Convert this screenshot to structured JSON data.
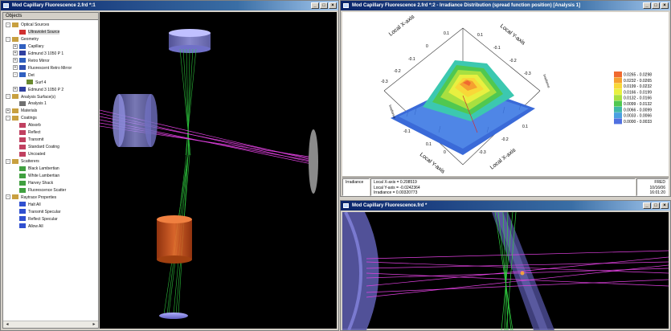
{
  "left_window": {
    "title": "Mod Capillary Fluorescence 2.frd *:1",
    "tree_header": "Objects",
    "tree": [
      {
        "label": "Optical Sources",
        "level": 0,
        "exp": "-",
        "icon": "folder-icon"
      },
      {
        "label": "Ultraviolet Source",
        "level": 1,
        "exp": "",
        "icon": "source-icon",
        "selected": true
      },
      {
        "label": "Geometry",
        "level": 0,
        "exp": "-",
        "icon": "folder-icon"
      },
      {
        "label": "Capillary",
        "level": 1,
        "exp": "+",
        "icon": "geometry-icon"
      },
      {
        "label": "Edmund 3 1050 P 1",
        "level": 1,
        "exp": "+",
        "icon": "lens-icon"
      },
      {
        "label": "Retro Mirror",
        "level": 1,
        "exp": "+",
        "icon": "geometry-icon"
      },
      {
        "label": "Fluorescent Retro Mirror",
        "level": 1,
        "exp": "+",
        "icon": "mirror-icon"
      },
      {
        "label": "Det",
        "level": 1,
        "exp": "-",
        "icon": "geometry-icon"
      },
      {
        "label": "Surf 4",
        "level": 2,
        "exp": "",
        "icon": "surface-icon"
      },
      {
        "label": "Edmund 3 1050 P 2",
        "level": 1,
        "exp": "+",
        "icon": "lens-icon"
      },
      {
        "label": "Analysis Surface(s)",
        "level": 0,
        "exp": "-",
        "icon": "folder-icon"
      },
      {
        "label": "Analysis 1",
        "level": 1,
        "exp": "",
        "icon": "analysis-icon"
      },
      {
        "label": "Materials",
        "level": 0,
        "exp": "+",
        "icon": "folder-icon"
      },
      {
        "label": "Coatings",
        "level": 0,
        "exp": "-",
        "icon": "folder-icon"
      },
      {
        "label": "Absorb",
        "level": 1,
        "exp": "",
        "icon": "coating-icon"
      },
      {
        "label": "Reflect",
        "level": 1,
        "exp": "",
        "icon": "coating-icon"
      },
      {
        "label": "Transmit",
        "level": 1,
        "exp": "",
        "icon": "coating-icon"
      },
      {
        "label": "Standard Coating",
        "level": 1,
        "exp": "",
        "icon": "coating-icon"
      },
      {
        "label": "Uncoated",
        "level": 1,
        "exp": "",
        "icon": "coating-icon"
      },
      {
        "label": "Scatterers",
        "level": 0,
        "exp": "-",
        "icon": "folder-icon"
      },
      {
        "label": "Black Lambertian",
        "level": 1,
        "exp": "",
        "icon": "scatter-icon"
      },
      {
        "label": "White Lambertian",
        "level": 1,
        "exp": "",
        "icon": "scatter-icon"
      },
      {
        "label": "Harvey Shack",
        "level": 1,
        "exp": "",
        "icon": "scatter-icon"
      },
      {
        "label": "Fluorescence Scatter",
        "level": 1,
        "exp": "",
        "icon": "scatter-icon"
      },
      {
        "label": "Raytrace Properties",
        "level": 0,
        "exp": "-",
        "icon": "folder-icon"
      },
      {
        "label": "Halt All",
        "level": 1,
        "exp": "",
        "icon": "raytrace-icon"
      },
      {
        "label": "Transmit Specular",
        "level": 1,
        "exp": "",
        "icon": "raytrace-icon"
      },
      {
        "label": "Reflect Specular",
        "level": 1,
        "exp": "",
        "icon": "raytrace-icon"
      },
      {
        "label": "Allow All",
        "level": 1,
        "exp": "",
        "icon": "raytrace-icon"
      }
    ]
  },
  "irradiance_window": {
    "title": "Mod Capillary Fluorescence 2.frd *:2 - Irradiance Distribution (spread function position) [Analysis 1]",
    "axis_labels": {
      "local_x_top": "Local X-axis",
      "local_y_top": "Local Y-axis",
      "local_y_bottom": "Local Y-axis",
      "local_x_bottom": "Local X-axis",
      "vertical": "Irradiance"
    },
    "axis_ticks_top_left": [
      "-0.3",
      "-0.2",
      "-0.1",
      "0",
      "0.1"
    ],
    "axis_ticks_top_right": [
      "0.1",
      "-0.1",
      "-0.2",
      "-0.3"
    ],
    "axis_ticks_bottom_left": [
      "-0.1",
      "0.1",
      "0"
    ],
    "axis_ticks_bottom_right": [
      "-0.3",
      "-0.2",
      "0.1"
    ],
    "legend": [
      {
        "range": "0.0265 - 0.0298",
        "color": "#f06a30"
      },
      {
        "range": "0.0232 - 0.0265",
        "color": "#f5a030"
      },
      {
        "range": "0.0199 - 0.0232",
        "color": "#f8d838"
      },
      {
        "range": "0.0166 - 0.0199",
        "color": "#e8f040"
      },
      {
        "range": "0.0132 - 0.0166",
        "color": "#a8e040"
      },
      {
        "range": "0.0099 - 0.0132",
        "color": "#50c850"
      },
      {
        "range": "0.0066 - 0.0099",
        "color": "#40b8a8"
      },
      {
        "range": "0.0033 - 0.0066",
        "color": "#4aa0e0"
      },
      {
        "range": "0.0000 - 0.0033",
        "color": "#5070e0"
      }
    ],
    "status": {
      "label": "Irradiance",
      "lines": [
        "Local X-axis = 0.208519",
        "Local Y-axis = -0.0242364",
        "Irradiance = 0.00320773"
      ],
      "app": "FRED",
      "date": "10/16/06",
      "time": "16:01:20"
    }
  },
  "bottom_window": {
    "title": "Mod Capillary Fluorescence.frd *"
  },
  "colors": {
    "title_bar_start": "#0a246a",
    "title_bar_end": "#a6caf0",
    "ray_green": "#30d040",
    "ray_magenta": "#e040e0",
    "lens_blue": "#8080e0",
    "capillary_orange": "#e06020",
    "surface_base": "#3a6ad8"
  }
}
